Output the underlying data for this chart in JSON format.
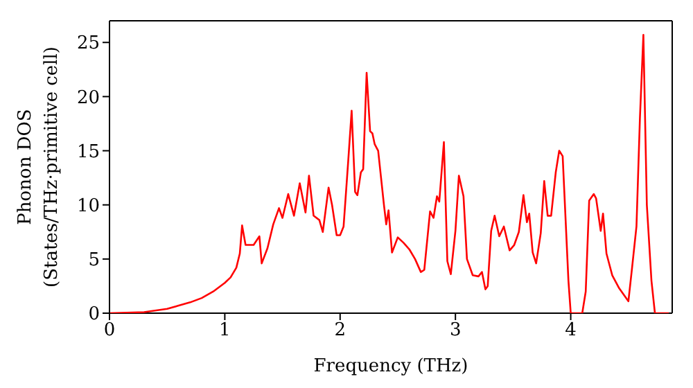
{
  "chart_data": {
    "type": "line",
    "xlabel": "Frequency (THz)",
    "ylabel": "Phonon DOS\n(States/THz·primitive cell)",
    "xlim": [
      0,
      4.88
    ],
    "xticks": [
      0,
      1,
      2,
      3,
      4
    ],
    "ylim": [
      0,
      27
    ],
    "yticks": [
      0,
      5,
      10,
      15,
      20,
      25
    ],
    "grid": false,
    "legend": false,
    "marker": "none",
    "line_style": "solid",
    "series": [
      {
        "color": "#ff0000",
        "x": [
          0,
          0.3,
          0.5,
          0.6,
          0.7,
          0.8,
          0.9,
          1.0,
          1.05,
          1.1,
          1.13,
          1.15,
          1.18,
          1.25,
          1.3,
          1.32,
          1.37,
          1.42,
          1.47,
          1.5,
          1.55,
          1.6,
          1.65,
          1.7,
          1.73,
          1.77,
          1.82,
          1.85,
          1.9,
          1.93,
          1.97,
          2.0,
          2.03,
          2.07,
          2.1,
          2.13,
          2.15,
          2.18,
          2.2,
          2.23,
          2.26,
          2.28,
          2.3,
          2.33,
          2.38,
          2.4,
          2.42,
          2.45,
          2.5,
          2.55,
          2.6,
          2.65,
          2.7,
          2.73,
          2.78,
          2.81,
          2.84,
          2.86,
          2.9,
          2.93,
          2.96,
          3.0,
          3.03,
          3.07,
          3.1,
          3.15,
          3.2,
          3.23,
          3.26,
          3.28,
          3.31,
          3.34,
          3.38,
          3.42,
          3.47,
          3.51,
          3.55,
          3.59,
          3.62,
          3.64,
          3.67,
          3.7,
          3.74,
          3.77,
          3.8,
          3.83,
          3.87,
          3.9,
          3.93,
          3.98,
          4.0,
          4.1,
          4.13,
          4.16,
          4.2,
          4.22,
          4.26,
          4.28,
          4.31,
          4.36,
          4.42,
          4.5,
          4.53,
          4.57,
          4.6,
          4.63,
          4.66,
          4.7,
          4.73,
          4.85
        ],
        "values": [
          0,
          0.1,
          0.4,
          0.7,
          1.0,
          1.4,
          2.0,
          2.8,
          3.3,
          4.2,
          5.5,
          8.1,
          6.3,
          6.3,
          7.1,
          4.6,
          6.0,
          8.2,
          9.7,
          8.8,
          11,
          9,
          12,
          9.3,
          12.7,
          9,
          8.6,
          7.5,
          11.6,
          10.0,
          7.2,
          7.2,
          8,
          14,
          18.7,
          11.2,
          10.9,
          13,
          13.3,
          22.2,
          16.8,
          16.6,
          15.6,
          15,
          10,
          8.2,
          9.5,
          5.6,
          7,
          6.5,
          5.9,
          5,
          3.8,
          4,
          9.4,
          8.8,
          10.8,
          10.3,
          15.8,
          4.8,
          3.6,
          7.6,
          12.7,
          10.8,
          5,
          3.5,
          3.4,
          3.8,
          2.2,
          2.5,
          7.6,
          9,
          7.1,
          8,
          5.8,
          6.3,
          7.5,
          10.9,
          8.4,
          9.2,
          5.6,
          4.6,
          7.4,
          12.2,
          9.0,
          9,
          13,
          15,
          14.5,
          3,
          0,
          0,
          2,
          10.4,
          11,
          10.6,
          7.6,
          9.2,
          5.5,
          3.5,
          2.3,
          1.1,
          4,
          8,
          18,
          25.7,
          10,
          3,
          0,
          0
        ]
      }
    ]
  }
}
